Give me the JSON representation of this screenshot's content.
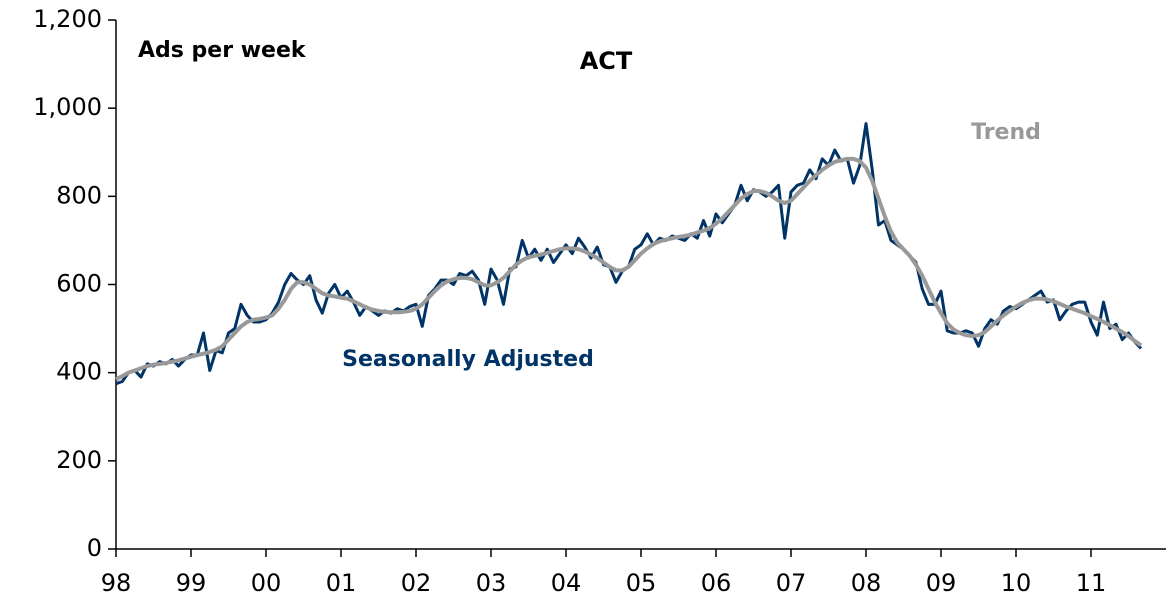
{
  "chart_data": {
    "type": "line",
    "title": "ACT",
    "ylabel": "Ads per week",
    "categories": [
      "98",
      null,
      null,
      null,
      null,
      null,
      null,
      null,
      null,
      null,
      null,
      null,
      "99",
      null,
      null,
      null,
      null,
      null,
      null,
      null,
      null,
      null,
      null,
      null,
      "00",
      null,
      null,
      null,
      null,
      null,
      null,
      null,
      null,
      null,
      null,
      null,
      "01",
      null,
      null,
      null,
      null,
      null,
      null,
      null,
      null,
      null,
      null,
      null,
      "02",
      null,
      null,
      null,
      null,
      null,
      null,
      null,
      null,
      null,
      null,
      null,
      "03",
      null,
      null,
      null,
      null,
      null,
      null,
      null,
      null,
      null,
      null,
      null,
      "04",
      null,
      null,
      null,
      null,
      null,
      null,
      null,
      null,
      null,
      null,
      null,
      "05",
      null,
      null,
      null,
      null,
      null,
      null,
      null,
      null,
      null,
      null,
      null,
      "06",
      null,
      null,
      null,
      null,
      null,
      null,
      null,
      null,
      null,
      null,
      null,
      "07",
      null,
      null,
      null,
      null,
      null,
      null,
      null,
      null,
      null,
      null,
      null,
      "08",
      null,
      null,
      null,
      null,
      null,
      null,
      null,
      null,
      null,
      null,
      null,
      "09",
      null,
      null,
      null,
      null,
      null,
      null,
      null,
      null,
      null,
      null,
      null,
      "10",
      null,
      null,
      null,
      null,
      null,
      null,
      null,
      null,
      null,
      null,
      null,
      "11",
      null,
      null,
      null,
      null,
      null,
      null,
      null,
      null,
      null,
      null,
      null
    ],
    "series": [
      {
        "name": "Seasonally Adjusted",
        "color": "#003366",
        "values": [
          375,
          380,
          400,
          405,
          390,
          420,
          415,
          425,
          420,
          430,
          415,
          430,
          440,
          440,
          490,
          405,
          450,
          445,
          490,
          500,
          555,
          530,
          515,
          515,
          520,
          535,
          560,
          600,
          625,
          610,
          600,
          620,
          565,
          535,
          580,
          600,
          570,
          585,
          560,
          530,
          550,
          540,
          530,
          540,
          535,
          545,
          540,
          550,
          555,
          505,
          575,
          590,
          610,
          610,
          600,
          625,
          620,
          630,
          610,
          555,
          635,
          610,
          555,
          635,
          640,
          700,
          660,
          680,
          655,
          680,
          650,
          670,
          690,
          670,
          705,
          685,
          660,
          685,
          645,
          640,
          605,
          630,
          640,
          680,
          690,
          715,
          690,
          705,
          700,
          710,
          705,
          700,
          715,
          705,
          745,
          710,
          760,
          740,
          760,
          780,
          825,
          790,
          815,
          810,
          800,
          810,
          825,
          705,
          810,
          825,
          830,
          860,
          840,
          885,
          870,
          905,
          880,
          885,
          830,
          870,
          965,
          860,
          735,
          745,
          700,
          690,
          680,
          665,
          650,
          590,
          555,
          555,
          585,
          495,
          490,
          490,
          495,
          490,
          460,
          500,
          520,
          510,
          540,
          550,
          545,
          555,
          565,
          575,
          585,
          560,
          565,
          520,
          540,
          555,
          560,
          560,
          515,
          485,
          560,
          500,
          510,
          475,
          490,
          470,
          455,
          null,
          null,
          null
        ]
      },
      {
        "name": "Trend",
        "color": "#999999",
        "values": [
          385,
          392,
          400,
          405,
          410,
          415,
          418,
          420,
          422,
          425,
          428,
          432,
          436,
          440,
          443,
          447,
          452,
          460,
          475,
          490,
          505,
          515,
          520,
          522,
          525,
          530,
          545,
          565,
          590,
          605,
          605,
          600,
          590,
          580,
          575,
          573,
          570,
          568,
          562,
          555,
          548,
          543,
          540,
          538,
          537,
          537,
          538,
          540,
          545,
          555,
          570,
          585,
          598,
          607,
          612,
          615,
          615,
          612,
          605,
          598,
          598,
          605,
          615,
          630,
          645,
          655,
          662,
          665,
          668,
          672,
          676,
          680,
          682,
          682,
          680,
          675,
          668,
          660,
          650,
          640,
          632,
          632,
          640,
          655,
          670,
          682,
          692,
          698,
          702,
          705,
          708,
          710,
          713,
          718,
          722,
          728,
          738,
          750,
          765,
          780,
          795,
          805,
          812,
          812,
          808,
          800,
          790,
          785,
          790,
          805,
          820,
          835,
          848,
          860,
          870,
          878,
          882,
          885,
          885,
          880,
          865,
          835,
          795,
          755,
          720,
          695,
          680,
          665,
          645,
          620,
          590,
          560,
          535,
          512,
          498,
          490,
          485,
          483,
          485,
          492,
          505,
          518,
          530,
          540,
          550,
          558,
          564,
          568,
          568,
          566,
          562,
          556,
          550,
          545,
          540,
          535,
          528,
          522,
          515,
          508,
          500,
          492,
          483,
          472,
          462,
          null,
          null,
          null
        ]
      }
    ],
    "ylim": [
      0,
      1200
    ],
    "yticks": [
      0,
      200,
      400,
      600,
      800,
      {
        "value": 1000,
        "label": "1,000"
      },
      {
        "value": 1200,
        "label": "1,200"
      }
    ]
  }
}
